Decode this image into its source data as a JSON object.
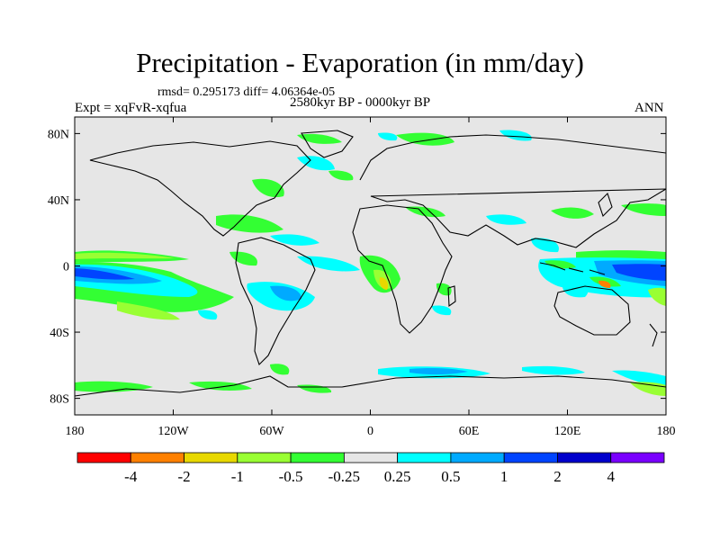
{
  "title": "Precipitation - Evaporation (in mm/day)",
  "stats_line": "rmsd= 0.295173 diff= 4.06364e-05",
  "experiment": "Expt = xqFvR-xqfua",
  "period": "2580kyr BP - 0000kyr BP",
  "season": "ANN",
  "map": {
    "background_color": "#e6e6e6",
    "x_ticks": [
      "180",
      "120W",
      "60W",
      "0",
      "60E",
      "120E",
      "180"
    ],
    "y_ticks": [
      "80N",
      "40N",
      "0",
      "40S",
      "80S"
    ]
  },
  "colorbar": {
    "colors": [
      "#ff0000",
      "#ff8000",
      "#e8d800",
      "#99ff33",
      "#33ff33",
      "#e6e6e6",
      "#00ffff",
      "#00aaff",
      "#0044ff",
      "#0000cc",
      "#7a00ff"
    ],
    "labels": [
      "-4",
      "-2",
      "-1",
      "-0.5",
      "-0.25",
      "0.25",
      "0.5",
      "1",
      "2",
      "4"
    ]
  }
}
